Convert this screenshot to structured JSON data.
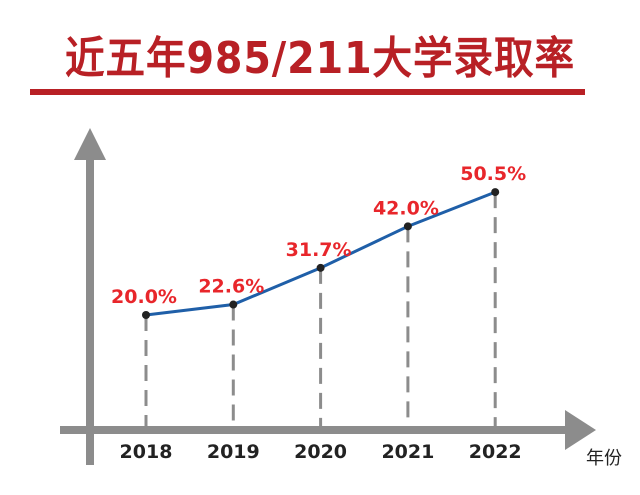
{
  "chart_data": {
    "type": "line",
    "title": "近五年985/211大学录取率",
    "xlabel": "年份",
    "ylabel": "",
    "categories": [
      "2018",
      "2019",
      "2020",
      "2021",
      "2022"
    ],
    "values": [
      20.0,
      22.6,
      31.7,
      42.0,
      50.5
    ],
    "data_labels": [
      "20.0%",
      "22.6%",
      "31.7%",
      "42.0%",
      "50.5%"
    ],
    "grid": false,
    "legend": "none",
    "colors": {
      "line": "#1f5fa8",
      "label": "#e8262b",
      "axis": "#8c8c8c",
      "title": "#b82025",
      "point": "#222222",
      "dash": "#8c8c8c"
    }
  }
}
